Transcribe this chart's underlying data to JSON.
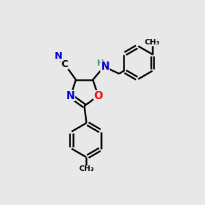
{
  "bg_color": "#e8e8e8",
  "atom_colors": {
    "C": "#000000",
    "N": "#0000cd",
    "O": "#ff0000",
    "H": "#4a9090"
  },
  "bond_color": "#000000",
  "bond_width": 1.8,
  "figsize": [
    3.0,
    3.0
  ],
  "dpi": 100,
  "xlim": [
    0,
    10
  ],
  "ylim": [
    0,
    10
  ]
}
